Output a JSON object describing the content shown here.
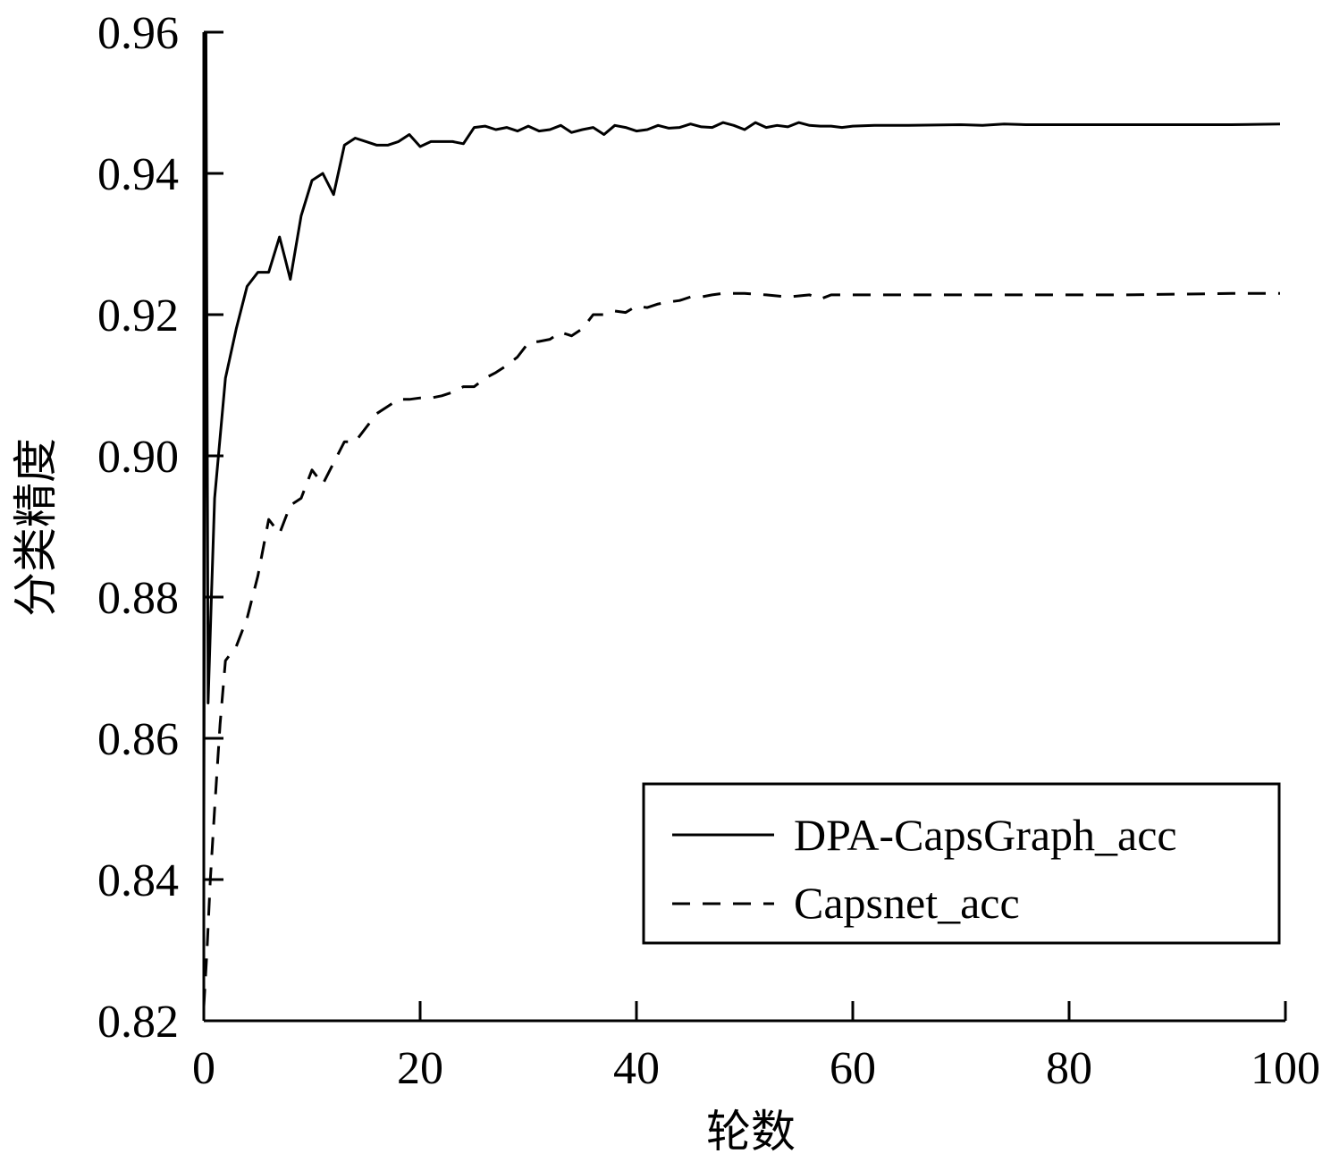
{
  "chart_data": {
    "type": "line",
    "xlabel": "轮数",
    "ylabel": "分类精度",
    "xlim": [
      0,
      100
    ],
    "ylim": [
      0.82,
      0.96
    ],
    "xticks": [
      0,
      20,
      40,
      60,
      80,
      100
    ],
    "xtick_labels": [
      "0",
      "20",
      "40",
      "60",
      "80",
      "100"
    ],
    "yticks": [
      0.82,
      0.84,
      0.86,
      0.88,
      0.9,
      0.92,
      0.94,
      0.96
    ],
    "ytick_labels": [
      "0.82",
      "0.84",
      "0.86",
      "0.88",
      "0.90",
      "0.92",
      "0.94",
      "0.96"
    ],
    "grid": false,
    "legend_position": "bottom-right",
    "series": [
      {
        "name": "DPA-CapsGraph_acc",
        "style": "solid",
        "color": "#000000",
        "x": [
          0,
          0.2,
          0.4,
          0.7,
          1,
          2,
          3,
          4,
          5,
          6,
          7,
          7.5,
          8,
          9,
          10,
          11,
          12,
          13,
          14,
          15,
          16,
          17,
          18,
          19,
          20,
          21,
          22,
          23,
          24,
          25,
          26,
          27,
          28,
          29,
          30,
          31,
          32,
          33,
          34,
          35,
          36,
          37,
          38,
          39,
          40,
          41,
          42,
          43,
          44,
          45,
          46,
          47,
          48,
          49,
          50,
          51,
          52,
          53,
          54,
          55,
          56,
          57,
          58,
          59,
          60,
          62,
          65,
          70,
          72,
          74,
          76,
          78,
          80,
          85,
          90,
          95,
          99.5
        ],
        "y": [
          0.848,
          0.96,
          0.865,
          0.88,
          0.894,
          0.911,
          0.918,
          0.924,
          0.926,
          0.926,
          0.931,
          0.928,
          0.925,
          0.934,
          0.939,
          0.94,
          0.937,
          0.944,
          0.945,
          0.9445,
          0.944,
          0.944,
          0.9445,
          0.9455,
          0.9438,
          0.9445,
          0.9445,
          0.9445,
          0.9442,
          0.9465,
          0.9467,
          0.9462,
          0.9465,
          0.946,
          0.9467,
          0.946,
          0.9462,
          0.9468,
          0.9458,
          0.9462,
          0.9465,
          0.9455,
          0.9468,
          0.9465,
          0.946,
          0.9462,
          0.9468,
          0.9464,
          0.9465,
          0.947,
          0.9466,
          0.9465,
          0.9472,
          0.9468,
          0.9462,
          0.9472,
          0.9465,
          0.9468,
          0.9466,
          0.9472,
          0.9468,
          0.9467,
          0.9467,
          0.9465,
          0.9467,
          0.9468,
          0.9468,
          0.9469,
          0.9468,
          0.947,
          0.9469,
          0.9469,
          0.9469,
          0.9469,
          0.9469,
          0.9469,
          0.947
        ]
      },
      {
        "name": "Capsnet_acc",
        "style": "dashed",
        "color": "#000000",
        "x": [
          0,
          0.3,
          0.6,
          1,
          1.5,
          2,
          3,
          4,
          5,
          6,
          7,
          8,
          9,
          10,
          11,
          12,
          13,
          14,
          15,
          16,
          17,
          18,
          19,
          20,
          21,
          22,
          23,
          24,
          25,
          26,
          27,
          28,
          29,
          30,
          31,
          32,
          33,
          34,
          35,
          36,
          37,
          38,
          39,
          40,
          41,
          42,
          43,
          44,
          45,
          46,
          47,
          48,
          50,
          52,
          54,
          56,
          57,
          58,
          60,
          65,
          70,
          75,
          80,
          85,
          90,
          95,
          99.5
        ],
        "y": [
          0.822,
          0.83,
          0.84,
          0.85,
          0.862,
          0.871,
          0.873,
          0.877,
          0.883,
          0.891,
          0.889,
          0.893,
          0.894,
          0.898,
          0.896,
          0.899,
          0.902,
          0.902,
          0.904,
          0.906,
          0.907,
          0.908,
          0.908,
          0.9082,
          0.9082,
          0.9085,
          0.909,
          0.9098,
          0.9098,
          0.911,
          0.9118,
          0.9128,
          0.914,
          0.916,
          0.9162,
          0.9165,
          0.9175,
          0.917,
          0.918,
          0.92,
          0.92,
          0.9205,
          0.9203,
          0.9212,
          0.921,
          0.9215,
          0.9218,
          0.922,
          0.9225,
          0.9225,
          0.9228,
          0.923,
          0.923,
          0.9228,
          0.9225,
          0.9228,
          0.9222,
          0.9228,
          0.9228,
          0.9228,
          0.9228,
          0.9228,
          0.9228,
          0.9228,
          0.9229,
          0.923,
          0.923
        ]
      }
    ]
  }
}
